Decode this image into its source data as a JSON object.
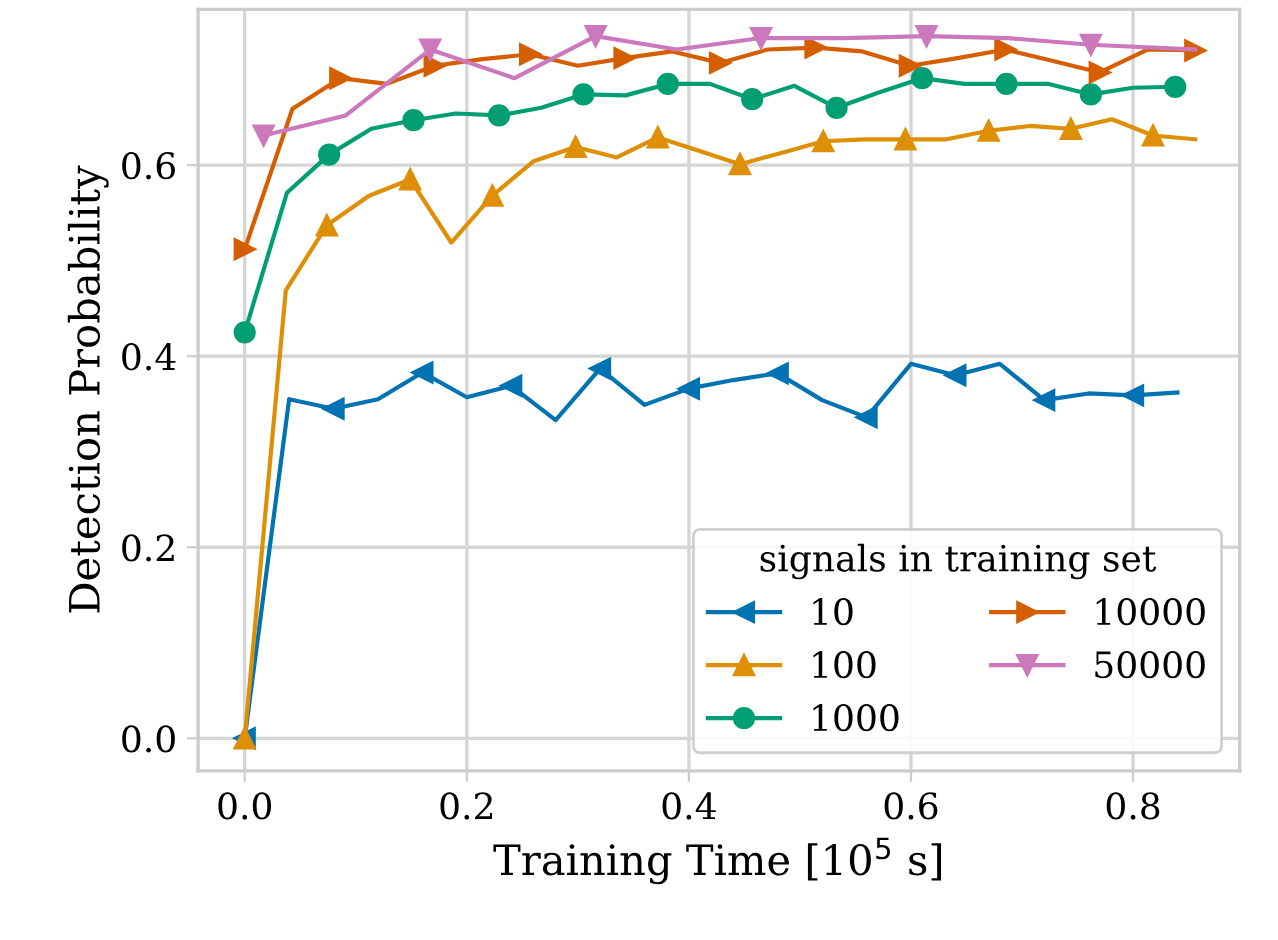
{
  "chart_data": {
    "type": "line",
    "xlabel": "Training Time [10$^{5}$ s]",
    "ylabel": "Detection Probability",
    "legend_title": "signals in training set",
    "legend": "bottom right",
    "grid": true,
    "xlim": [
      -0.042,
      0.896
    ],
    "ylim": [
      -0.034,
      0.763
    ],
    "xticks": [
      {
        "value": 0,
        "label": "0.0"
      },
      0.2,
      0.4,
      0.6,
      0.8
    ],
    "yticks": [
      {
        "value": 0,
        "label": "0.0"
      },
      0.2,
      0.4,
      0.6
    ],
    "series": [
      {
        "name": "10",
        "color": "#0173b2",
        "marker": "triangle_left",
        "x": [
          0,
          0.04,
          0.08,
          0.12,
          0.16,
          0.2,
          0.24,
          0.28,
          0.32,
          0.36,
          0.4,
          0.44,
          0.48,
          0.52,
          0.56,
          0.6,
          0.64,
          0.68,
          0.72,
          0.76,
          0.8,
          0.84
        ],
        "values": [
          0,
          0.355,
          0.345,
          0.355,
          0.383,
          0.357,
          0.369,
          0.333,
          0.387,
          0.349,
          0.366,
          0.375,
          0.382,
          0.354,
          0.336,
          0.392,
          0.38,
          0.392,
          0.354,
          0.361,
          0.359,
          0.362
        ]
      },
      {
        "name": "100",
        "color": "#de8f05",
        "marker": "triangle",
        "x": [
          0,
          0.037,
          0.074,
          0.112,
          0.149,
          0.186,
          0.223,
          0.26,
          0.298,
          0.335,
          0.372,
          0.409,
          0.446,
          0.484,
          0.521,
          0.558,
          0.595,
          0.632,
          0.67,
          0.707,
          0.744,
          0.781,
          0.818,
          0.856
        ],
        "values": [
          0,
          0.469,
          0.537,
          0.568,
          0.585,
          0.519,
          0.568,
          0.604,
          0.619,
          0.608,
          0.629,
          0.615,
          0.601,
          0.613,
          0.625,
          0.627,
          0.627,
          0.627,
          0.636,
          0.641,
          0.638,
          0.648,
          0.631,
          0.627
        ]
      },
      {
        "name": "1000",
        "color": "#029e73",
        "marker": "circle",
        "x": [
          0,
          0.038,
          0.076,
          0.114,
          0.152,
          0.19,
          0.229,
          0.267,
          0.305,
          0.343,
          0.381,
          0.419,
          0.457,
          0.495,
          0.533,
          0.571,
          0.61,
          0.648,
          0.686,
          0.724,
          0.762,
          0.8,
          0.838
        ],
        "values": [
          0.425,
          0.571,
          0.611,
          0.638,
          0.647,
          0.654,
          0.652,
          0.66,
          0.674,
          0.673,
          0.685,
          0.685,
          0.669,
          0.683,
          0.66,
          0.676,
          0.691,
          0.685,
          0.685,
          0.685,
          0.674,
          0.681,
          0.682
        ]
      },
      {
        "name": "10000",
        "color": "#d55e00",
        "marker": "triangle_right",
        "x": [
          0,
          0.043,
          0.086,
          0.128,
          0.171,
          0.214,
          0.257,
          0.3,
          0.342,
          0.385,
          0.428,
          0.471,
          0.514,
          0.556,
          0.599,
          0.642,
          0.685,
          0.728,
          0.77,
          0.813,
          0.856
        ],
        "values": [
          0.512,
          0.659,
          0.691,
          0.685,
          0.704,
          0.711,
          0.716,
          0.704,
          0.712,
          0.719,
          0.707,
          0.721,
          0.723,
          0.719,
          0.704,
          0.712,
          0.721,
          0.709,
          0.697,
          0.721,
          0.72
        ]
      },
      {
        "name": "50000",
        "color": "#cc78bc",
        "marker": "triangle_down",
        "x": [
          0.017,
          0.091,
          0.167,
          0.243,
          0.316,
          0.389,
          0.465,
          0.539,
          0.614,
          0.687,
          0.762,
          0.856
        ],
        "values": [
          0.631,
          0.652,
          0.721,
          0.691,
          0.735,
          0.721,
          0.733,
          0.733,
          0.735,
          0.733,
          0.726,
          0.721
        ]
      }
    ]
  }
}
